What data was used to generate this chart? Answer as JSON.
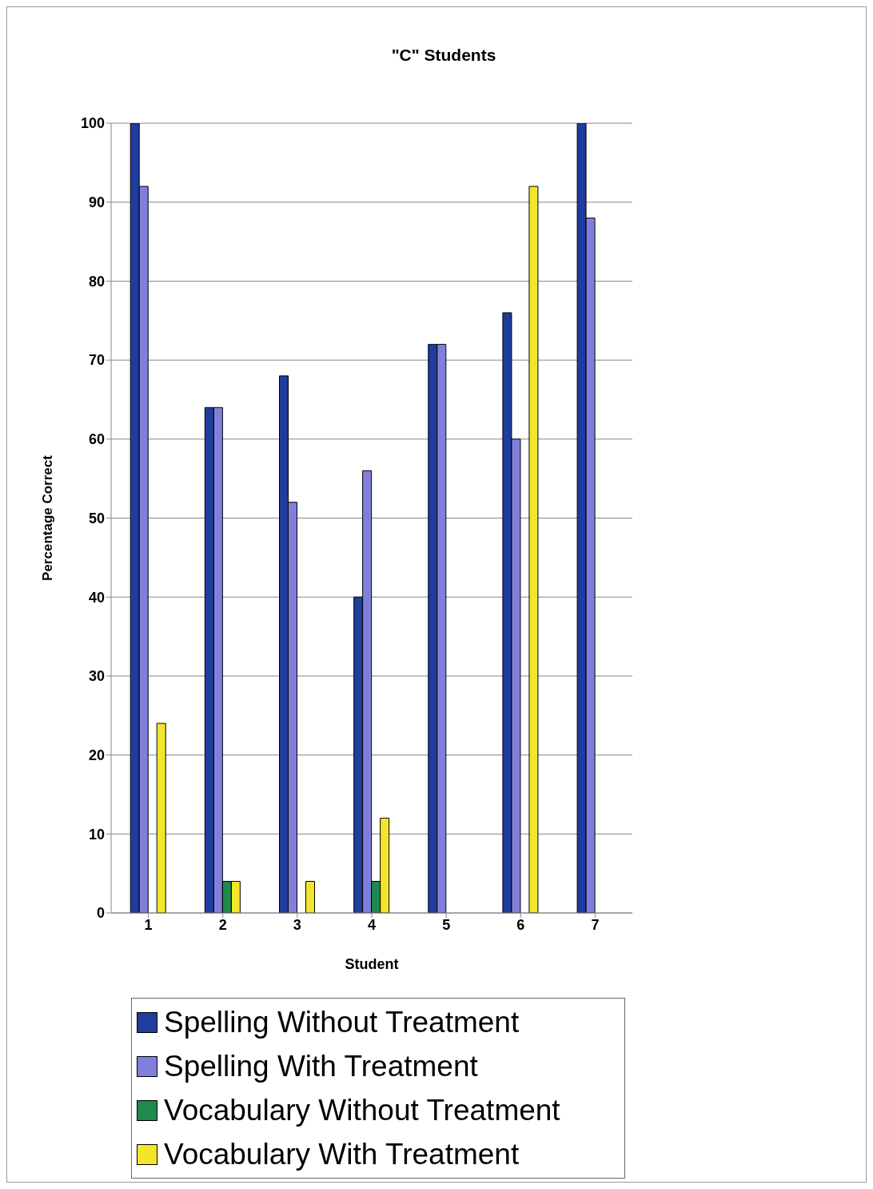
{
  "chart_data": {
    "type": "bar",
    "title": "\"C\" Students",
    "xlabel": "Student",
    "ylabel": "Percentage Correct",
    "categories": [
      "1",
      "2",
      "3",
      "4",
      "5",
      "6",
      "7"
    ],
    "series": [
      {
        "name": "Spelling Without Treatment",
        "color": "#1f3c9e",
        "values": [
          100,
          64,
          68,
          40,
          72,
          76,
          100
        ]
      },
      {
        "name": "Spelling With Treatment",
        "color": "#8080dc",
        "values": [
          92,
          64,
          52,
          56,
          72,
          60,
          88
        ]
      },
      {
        "name": "Vocabulary Without Treatment",
        "color": "#1e8a4c",
        "values": [
          null,
          4,
          null,
          4,
          null,
          null,
          null
        ]
      },
      {
        "name": "Vocabulary With Treatment",
        "color": "#f2e52c",
        "values": [
          24,
          4,
          4,
          12,
          null,
          92,
          null
        ]
      }
    ],
    "ylim": [
      0,
      100
    ],
    "yticks": [
      0,
      10,
      20,
      30,
      40,
      50,
      60,
      70,
      80,
      90,
      100
    ],
    "grid": "y",
    "legend": "bottom"
  }
}
